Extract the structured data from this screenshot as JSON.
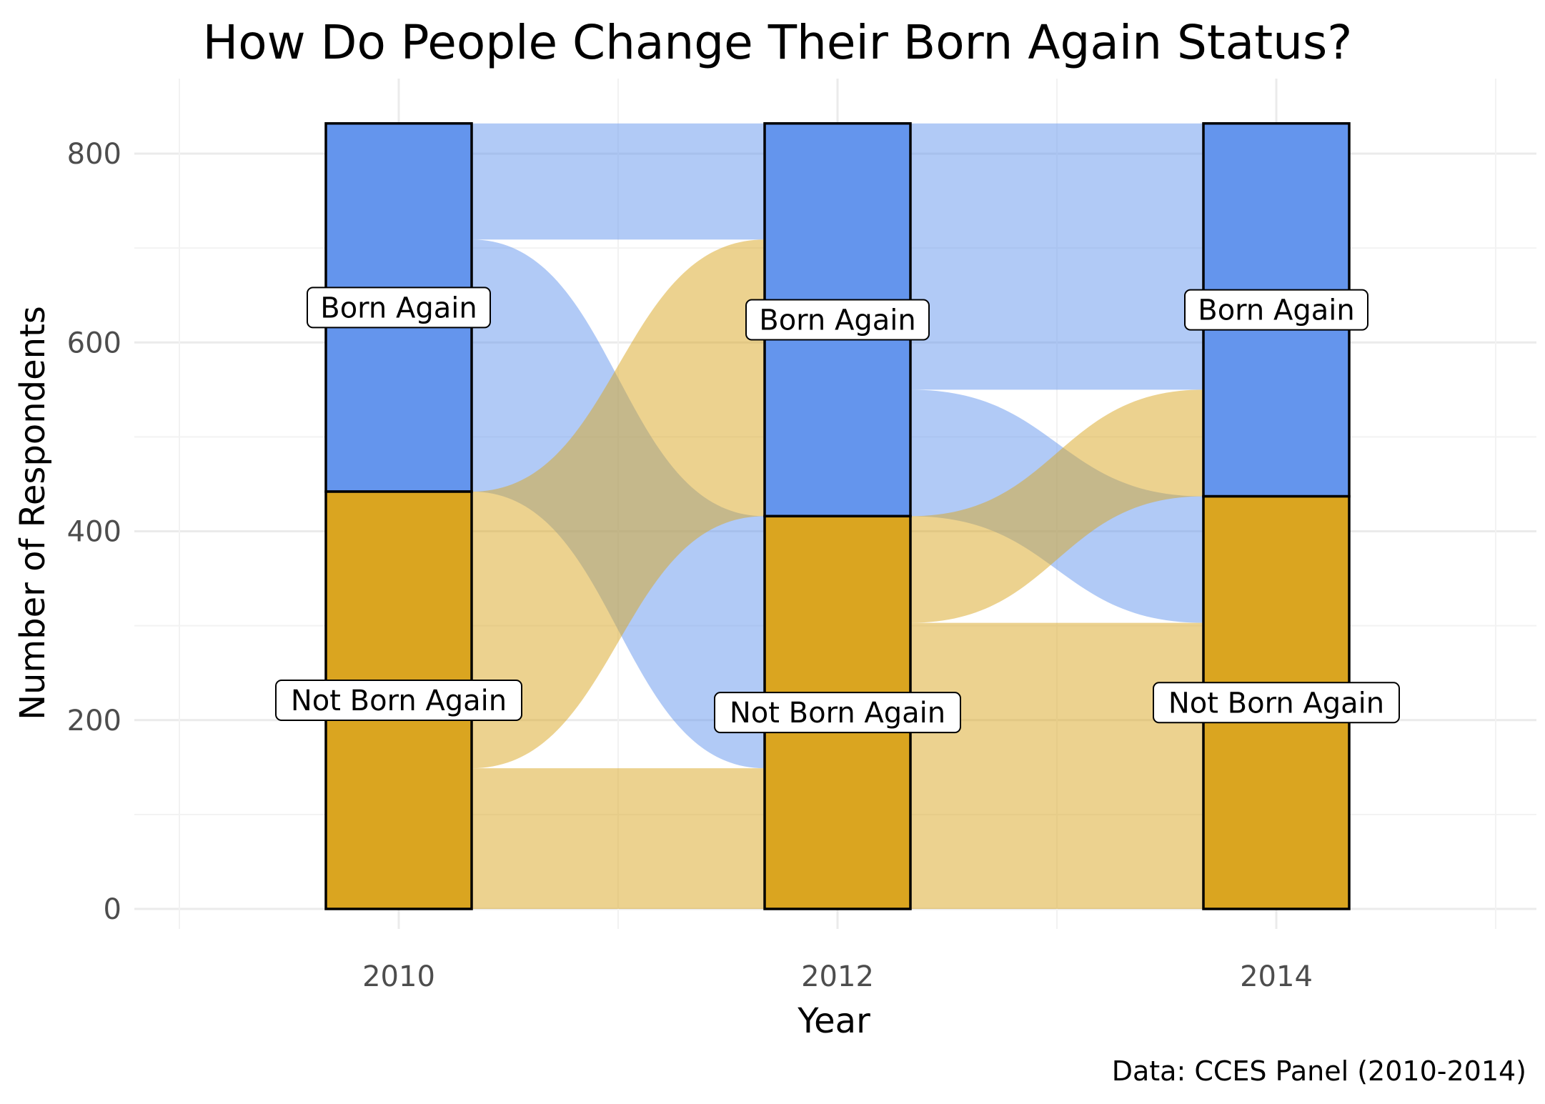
{
  "chart_data": {
    "type": "alluvial",
    "title": "How Do People Change Their Born Again Status?",
    "xlabel": "Year",
    "ylabel": "Number of Respondents",
    "caption": "Data: CCES Panel (2010-2014)",
    "x": [
      "2010",
      "2012",
      "2014"
    ],
    "ylim": [
      0,
      832
    ],
    "yticks": [
      0,
      200,
      400,
      600,
      800
    ],
    "grid": true,
    "legend": "none",
    "categories": [
      "Born Again",
      "Not Born Again"
    ],
    "colors": {
      "Born Again": "#6495ed",
      "Not Born Again": "#daa520"
    },
    "strata": [
      {
        "year": "2010",
        "values": {
          "Born Again": 390,
          "Not Born Again": 442
        }
      },
      {
        "year": "2012",
        "values": {
          "Born Again": 416,
          "Not Born Again": 416
        }
      },
      {
        "year": "2014",
        "values": {
          "Born Again": 395,
          "Not Born Again": 437
        }
      }
    ],
    "flows": [
      {
        "from_year": "2010",
        "to_year": "2012",
        "from": "Born Again",
        "to": "Born Again",
        "value": 123
      },
      {
        "from_year": "2010",
        "to_year": "2012",
        "from": "Born Again",
        "to": "Not Born Again",
        "value": 267
      },
      {
        "from_year": "2010",
        "to_year": "2012",
        "from": "Not Born Again",
        "to": "Born Again",
        "value": 293
      },
      {
        "from_year": "2010",
        "to_year": "2012",
        "from": "Not Born Again",
        "to": "Not Born Again",
        "value": 149
      },
      {
        "from_year": "2012",
        "to_year": "2014",
        "from": "Born Again",
        "to": "Born Again",
        "value": 282
      },
      {
        "from_year": "2012",
        "to_year": "2014",
        "from": "Born Again",
        "to": "Not Born Again",
        "value": 134
      },
      {
        "from_year": "2012",
        "to_year": "2014",
        "from": "Not Born Again",
        "to": "Born Again",
        "value": 113
      },
      {
        "from_year": "2012",
        "to_year": "2014",
        "from": "Not Born Again",
        "to": "Not Born Again",
        "value": 303
      }
    ]
  }
}
